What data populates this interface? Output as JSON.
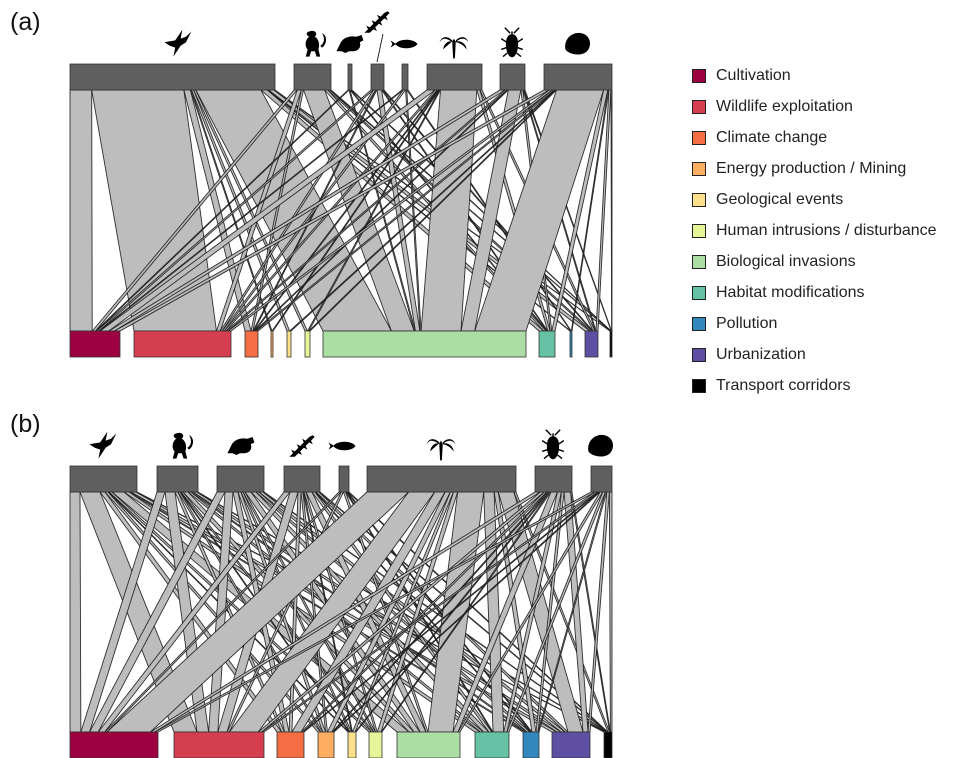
{
  "panels": [
    {
      "label": "(a)",
      "top_groups": [
        {
          "name": "birds",
          "icon": "hummingbird-icon"
        },
        {
          "name": "mammals",
          "icon": "monkey-icon"
        },
        {
          "name": "amphibians",
          "icon": "frog-icon"
        },
        {
          "name": "reptiles",
          "icon": "gecko-icon"
        },
        {
          "name": "fish",
          "icon": "fish-icon"
        },
        {
          "name": "plants",
          "icon": "palm-tree-icon"
        },
        {
          "name": "insects",
          "icon": "cockroach-icon"
        },
        {
          "name": "snails",
          "icon": "snail-shell-icon"
        }
      ]
    },
    {
      "label": "(b)",
      "top_groups": [
        {
          "name": "birds",
          "icon": "hummingbird-icon"
        },
        {
          "name": "mammals",
          "icon": "monkey-icon"
        },
        {
          "name": "amphibians",
          "icon": "frog-icon"
        },
        {
          "name": "reptiles",
          "icon": "gecko-icon"
        },
        {
          "name": "fish",
          "icon": "fish-icon"
        },
        {
          "name": "plants",
          "icon": "palm-tree-icon"
        },
        {
          "name": "insects",
          "icon": "cockroach-icon"
        },
        {
          "name": "snails",
          "icon": "snail-shell-icon"
        }
      ]
    }
  ],
  "legend": [
    {
      "label": "Cultivation",
      "color": "#9e0142"
    },
    {
      "label": "Wildlife exploitation",
      "color": "#d53e4f"
    },
    {
      "label": "Climate change",
      "color": "#f46d43"
    },
    {
      "label": "Energy production / Mining",
      "color": "#fdae61"
    },
    {
      "label": "Geological events",
      "color": "#fee08b"
    },
    {
      "label": "Human intrusions / disturbance",
      "color": "#e6f598"
    },
    {
      "label": "Biological invasions",
      "color": "#abdda4"
    },
    {
      "label": "Habitat modifications",
      "color": "#66c2a5"
    },
    {
      "label": "Pollution",
      "color": "#3288bd"
    },
    {
      "label": "Urbanization",
      "color": "#5e4fa2"
    },
    {
      "label": "Transport corridors",
      "color": "#000000"
    }
  ],
  "colors": {
    "top_bar": "#5f5f5f",
    "flow": "#bdbdbd",
    "flow_edge": "#111111"
  }
}
